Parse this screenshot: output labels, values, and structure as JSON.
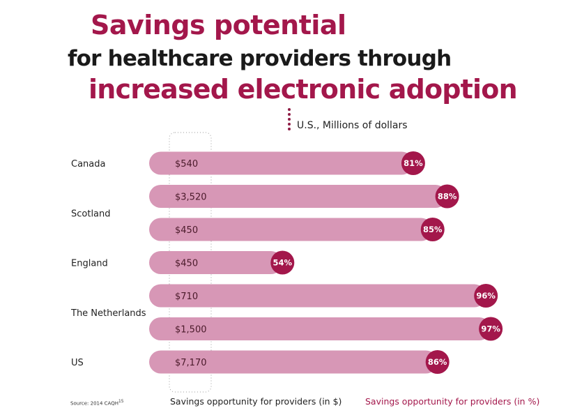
{
  "header": {
    "title_line1": "Savings potential",
    "title_line2": "for healthcare providers through",
    "title_line3": "increased electronic adoption",
    "units": "U.S., Millions of dollars"
  },
  "footer": {
    "source": "Source: 2014 CAQH",
    "source_sup": "15",
    "legend_dollar": "Savings opportunity for providers (in $)",
    "legend_pct": "Savings opportunity for providers (in %)"
  },
  "colors": {
    "bar": "#d797b6",
    "circle": "#a3174b",
    "accent": "#a3174b"
  },
  "chart_data": {
    "type": "bar",
    "orientation": "horizontal",
    "title": "Savings potential for healthcare providers through increased electronic adoption",
    "subtitle": "U.S., Millions of dollars",
    "categories": [
      "Canada",
      "Scotland",
      "England",
      "The Netherlands",
      "US"
    ],
    "bars": [
      {
        "country": "Canada",
        "dollars": 540,
        "dollar_label": "$540",
        "pct": 81,
        "pct_label": "81%"
      },
      {
        "country": "Scotland",
        "dollars": 3520,
        "dollar_label": "$3,520",
        "pct": 88,
        "pct_label": "88%"
      },
      {
        "country": "Scotland",
        "dollars": 450,
        "dollar_label": "$450",
        "pct": 85,
        "pct_label": "85%"
      },
      {
        "country": "England",
        "dollars": 450,
        "dollar_label": "$450",
        "pct": 54,
        "pct_label": "54%"
      },
      {
        "country": "The Netherlands",
        "dollars": 710,
        "dollar_label": "$710",
        "pct": 96,
        "pct_label": "96%"
      },
      {
        "country": "The Netherlands",
        "dollars": 1500,
        "dollar_label": "$1,500",
        "pct": 97,
        "pct_label": "97%"
      },
      {
        "country": "US",
        "dollars": 7170,
        "dollar_label": "$7,170",
        "pct": 86,
        "pct_label": "86%"
      }
    ],
    "country_labels": [
      {
        "label": "Canada",
        "rows": [
          0
        ]
      },
      {
        "label": "Scotland",
        "rows": [
          1,
          2
        ]
      },
      {
        "label": "England",
        "rows": [
          3
        ]
      },
      {
        "label": "The Netherlands",
        "rows": [
          4,
          5
        ]
      },
      {
        "label": "US",
        "rows": [
          6
        ]
      }
    ],
    "legend": [
      "Savings opportunity for providers (in $)",
      "Savings opportunity for providers (in %)"
    ],
    "xlim": [
      0,
      100
    ],
    "grid": false
  }
}
